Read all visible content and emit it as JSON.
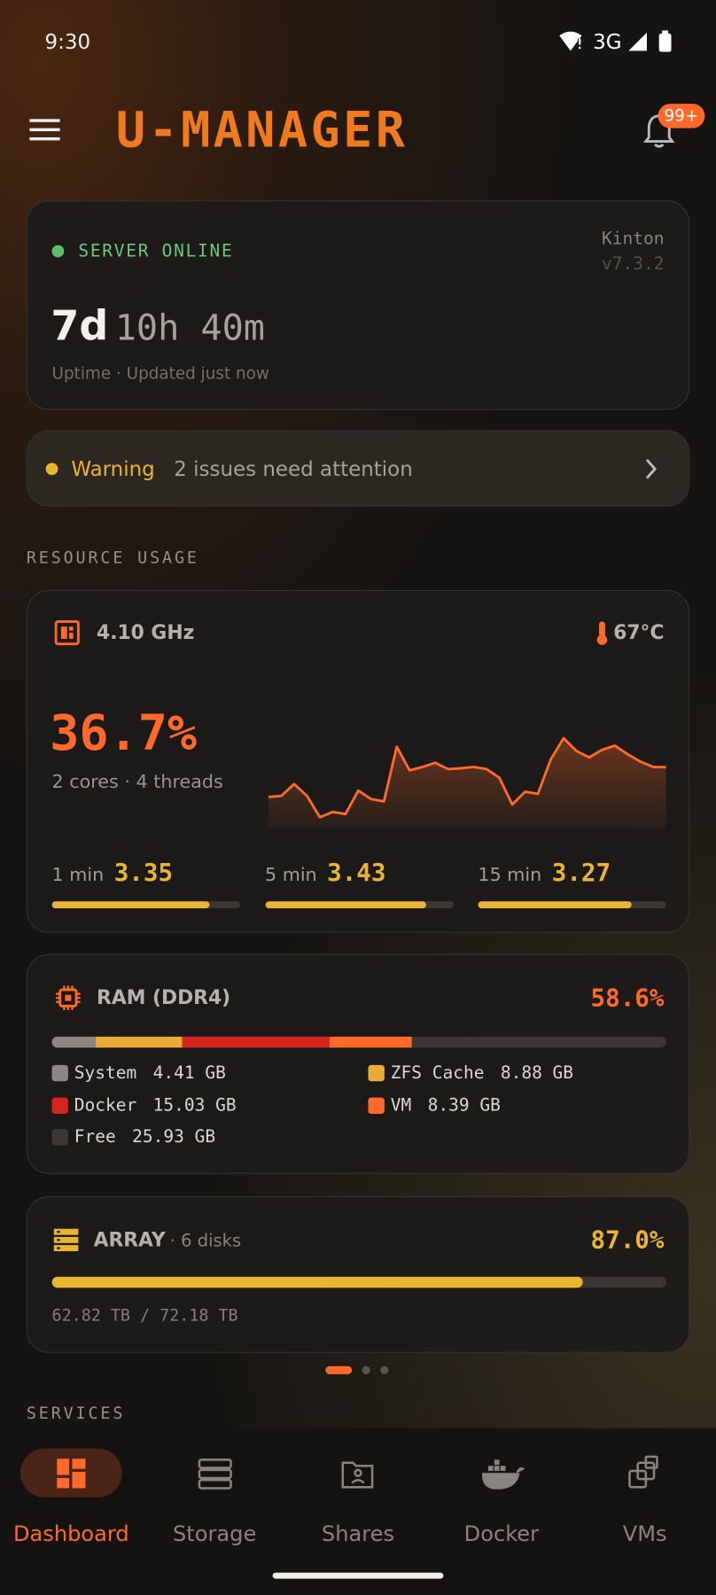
{
  "status_bar": {
    "time": "9:30",
    "network": "3G"
  },
  "header": {
    "title": "U-MANAGER",
    "badge": "99+"
  },
  "server": {
    "status": "SERVER ONLINE",
    "name": "Kinton",
    "version": "v7.3.2",
    "uptime_days": "7d",
    "uptime_rest": "10h 40m",
    "subtitle": "Uptime · Updated just now"
  },
  "alert": {
    "level": "Warning",
    "message": "2 issues need attention"
  },
  "sections": {
    "resources": "RESOURCE USAGE",
    "services": "SERVICES"
  },
  "cpu": {
    "frequency": "4.10 GHz",
    "temperature": "67°C",
    "usage": "36.7%",
    "cores": 2,
    "cores_unit": "cores",
    "separator": "·",
    "threads": 4,
    "threads_unit": "threads",
    "history": {
      "ylim": [
        0,
        100
      ],
      "color": "#ff6a2b",
      "values": [
        18.7,
        19.4,
        26.5,
        19.4,
        6.5,
        9.7,
        8.4,
        22.6,
        17.4,
        16.1,
        49.0,
        34.8,
        36.8,
        39.4,
        35.5,
        36.1,
        36.8,
        35.5,
        30.3,
        14.2,
        21.9,
        20.6,
        41.3,
        54.2,
        46.5,
        42.6,
        47.1,
        49.7,
        44.5,
        40.0,
        36.8,
        36.7
      ]
    },
    "loads": [
      {
        "label": "1 min",
        "value": 3.35
      },
      {
        "label": "5 min",
        "value": 3.43
      },
      {
        "label": "15 min",
        "value": 3.27
      }
    ]
  },
  "ram": {
    "title": "RAM (DDR4)",
    "usage": "58.6%",
    "segments": [
      {
        "name": "System",
        "size": 4.41,
        "size_label": "4.41 GB",
        "color": "#8c8781"
      },
      {
        "name": "ZFS Cache",
        "size": 8.88,
        "size_label": "8.88 GB",
        "color": "#e9ab35"
      },
      {
        "name": "Docker",
        "size": 15.03,
        "size_label": "15.03 GB",
        "color": "#d4261f"
      },
      {
        "name": "VM",
        "size": 8.39,
        "size_label": "8.39 GB",
        "color": "#ff6a2b"
      },
      {
        "name": "Free",
        "size": 25.93,
        "size_label": "25.93 GB",
        "color": "#3a3735"
      }
    ]
  },
  "array": {
    "title": "ARRAY",
    "disks": "· 6 disks",
    "usage": "87.0%",
    "used": 62.82,
    "total": 72.18,
    "capacity_label": "62.82 TB / 72.18 TB"
  },
  "nav": {
    "items": [
      "Dashboard",
      "Storage",
      "Shares",
      "Docker",
      "VMs"
    ],
    "active": 0
  }
}
